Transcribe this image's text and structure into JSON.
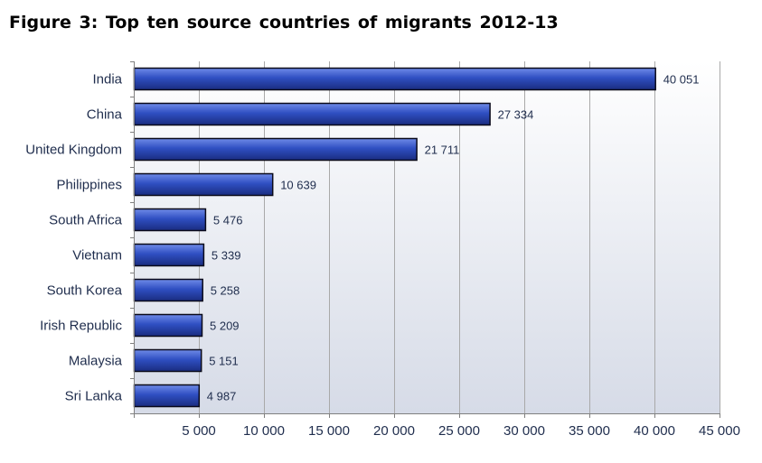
{
  "title": "Figure  3: Top ten source countries of migrants  2012-13",
  "colors": {
    "bar_light": "#6f8be8",
    "bar_mid": "#2f4fc2",
    "bar_dark": "#1a2c80",
    "bar_stroke": "#0a0a1a",
    "plot_bg_top": "#ffffff",
    "plot_bg_bottom": "#d6dbe7",
    "grid": "#a9a9a9",
    "axis": "#808080",
    "text": "#1f2d4d"
  },
  "chart_data": {
    "type": "bar",
    "orientation": "horizontal",
    "title": "Figure  3: Top ten source countries of migrants  2012-13",
    "xlabel": "",
    "ylabel": "",
    "categories": [
      "India",
      "China",
      "United Kingdom",
      "Philippines",
      "South Africa",
      "Vietnam",
      "South Korea",
      "Irish Republic",
      "Malaysia",
      "Sri Lanka"
    ],
    "values": [
      40051,
      27334,
      21711,
      10639,
      5476,
      5339,
      5258,
      5209,
      5151,
      4987
    ],
    "value_labels": [
      "40 051",
      "27 334",
      "21 711",
      "10 639",
      "5 476",
      "5 339",
      "5 258",
      "5 209",
      "5 151",
      "4 987"
    ],
    "xlim": [
      0,
      45000
    ],
    "xticks": [
      5000,
      10000,
      15000,
      20000,
      25000,
      30000,
      35000,
      40000,
      45000
    ],
    "xtick_labels": [
      "5 000",
      "10 000",
      "15 000",
      "20 000",
      "25 000",
      "30 000",
      "35 000",
      "40 000",
      "45 000"
    ],
    "grid": true,
    "legend": false
  }
}
